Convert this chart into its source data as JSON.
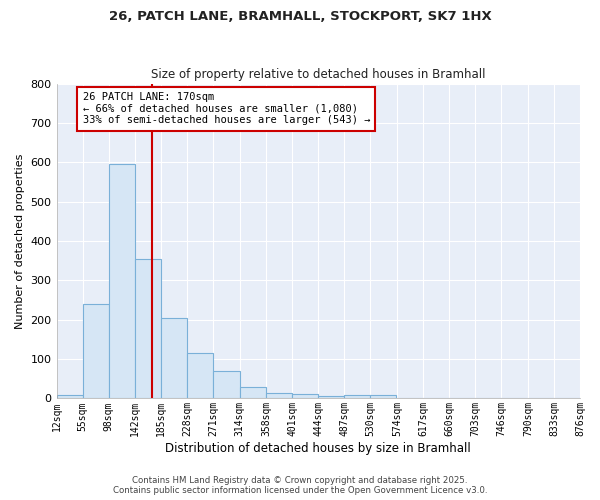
{
  "title1": "26, PATCH LANE, BRAMHALL, STOCKPORT, SK7 1HX",
  "title2": "Size of property relative to detached houses in Bramhall",
  "xlabel": "Distribution of detached houses by size in Bramhall",
  "ylabel": "Number of detached properties",
  "bar_color": "#d6e6f5",
  "bar_edge_color": "#7ab0d8",
  "background_color": "#e8eef8",
  "grid_color": "#ffffff",
  "bin_edges": [
    12,
    55,
    98,
    142,
    185,
    228,
    271,
    314,
    358,
    401,
    444,
    487,
    530,
    574,
    617,
    660,
    703,
    746,
    790,
    833,
    876
  ],
  "bar_heights": [
    8,
    240,
    595,
    355,
    205,
    115,
    70,
    28,
    15,
    10,
    5,
    8,
    8,
    0,
    0,
    0,
    0,
    0,
    0,
    0
  ],
  "tick_labels": [
    "12sqm",
    "55sqm",
    "98sqm",
    "142sqm",
    "185sqm",
    "228sqm",
    "271sqm",
    "314sqm",
    "358sqm",
    "401sqm",
    "444sqm",
    "487sqm",
    "530sqm",
    "574sqm",
    "617sqm",
    "660sqm",
    "703sqm",
    "746sqm",
    "790sqm",
    "833sqm",
    "876sqm"
  ],
  "red_line_x": 170,
  "annotation_title": "26 PATCH LANE: 170sqm",
  "annotation_line1": "← 66% of detached houses are smaller (1,080)",
  "annotation_line2": "33% of semi-detached houses are larger (543) →",
  "red_line_color": "#cc0000",
  "annotation_box_color": "#ffffff",
  "annotation_box_edge": "#cc0000",
  "ylim": [
    0,
    800
  ],
  "yticks": [
    0,
    100,
    200,
    300,
    400,
    500,
    600,
    700,
    800
  ],
  "footer1": "Contains HM Land Registry data © Crown copyright and database right 2025.",
  "footer2": "Contains public sector information licensed under the Open Government Licence v3.0."
}
